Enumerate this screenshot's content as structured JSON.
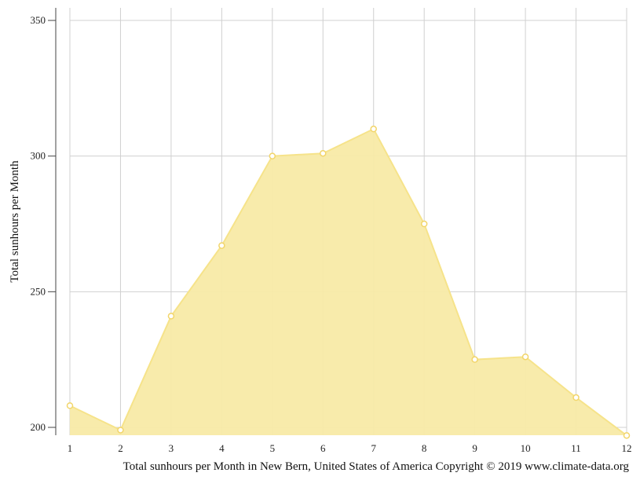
{
  "chart_data": {
    "type": "area",
    "x": [
      "1",
      "2",
      "3",
      "4",
      "5",
      "6",
      "7",
      "8",
      "9",
      "10",
      "11",
      "12"
    ],
    "values": [
      208,
      199,
      241,
      267,
      300,
      301,
      310,
      275,
      225,
      226,
      211,
      197
    ],
    "ylabel": "Total sunhours per Month",
    "xlabel": "",
    "caption": "Total sunhours per Month in New Bern, United States of America Copyright © 2019 www.climate-data.org",
    "ylim": [
      197,
      355
    ],
    "yticks": [
      200,
      250,
      300,
      350
    ],
    "grid": true,
    "colors": {
      "fill": "#f8eaa6",
      "line": "#f6e38a",
      "marker_fill": "#ffffff",
      "marker_stroke": "#f2d56a",
      "grid": "#d0d0d0",
      "axis": "#444444"
    }
  }
}
